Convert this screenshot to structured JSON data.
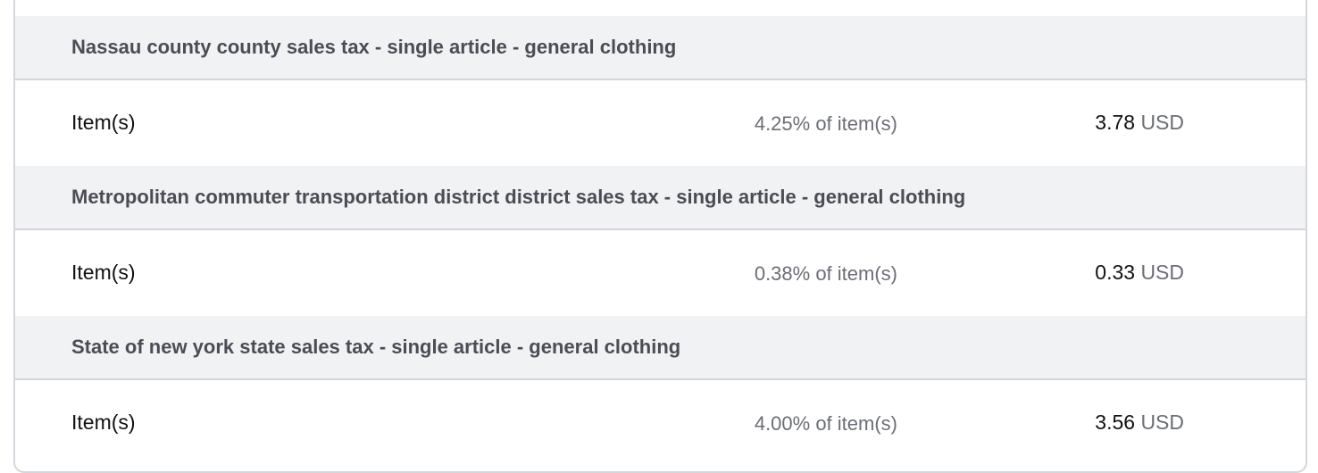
{
  "tax_lines": [
    {
      "title": "Nassau county county sales tax - single article - general clothing",
      "label": "Item(s)",
      "rate": "4.25% of item(s)",
      "amount": "3.78",
      "currency": "USD"
    },
    {
      "title": "Metropolitan commuter transportation district district sales tax - single article - general clothing",
      "label": "Item(s)",
      "rate": "0.38% of item(s)",
      "amount": "0.33",
      "currency": "USD"
    },
    {
      "title": "State of new york state sales tax - single article - general clothing",
      "label": "Item(s)",
      "rate": "4.00% of item(s)",
      "amount": "3.56",
      "currency": "USD"
    }
  ]
}
